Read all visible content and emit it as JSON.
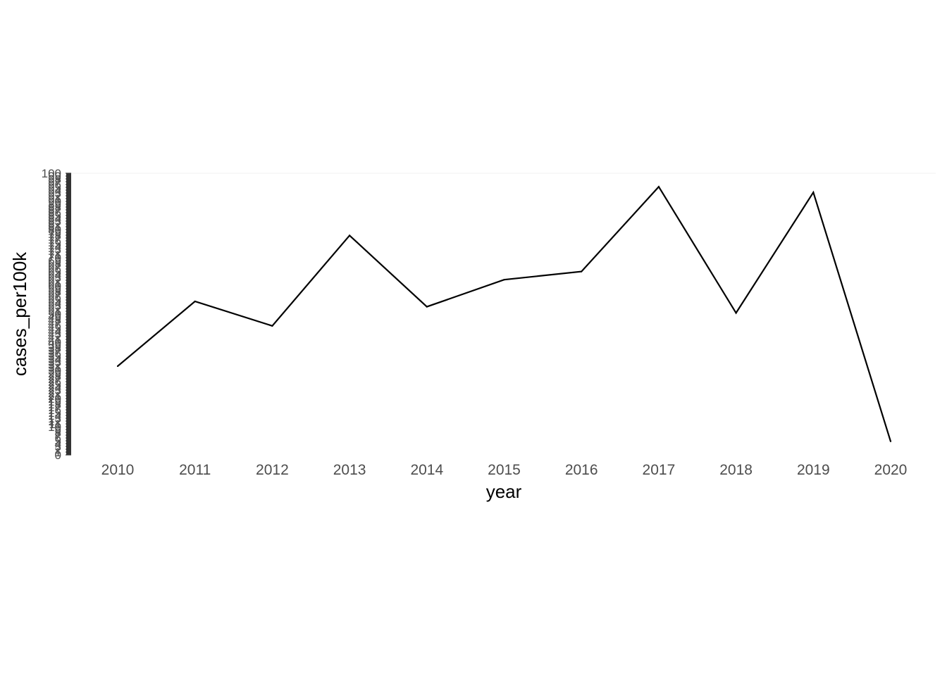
{
  "chart_data": {
    "type": "line",
    "title": "",
    "xlabel": "year",
    "ylabel": "cases_per100k",
    "x": [
      2010,
      2011,
      2012,
      2013,
      2014,
      2015,
      2016,
      2017,
      2018,
      2019,
      2020
    ],
    "series": [
      {
        "values": [
          31.5,
          54.5,
          45.8,
          77.9,
          52.6,
          62.2,
          65.1,
          95.2,
          50.4,
          93.2,
          4.8
        ]
      }
    ],
    "ylim": [
      0,
      100
    ],
    "grid": false,
    "line_color": "#000000",
    "ytick_color": "#333333"
  }
}
